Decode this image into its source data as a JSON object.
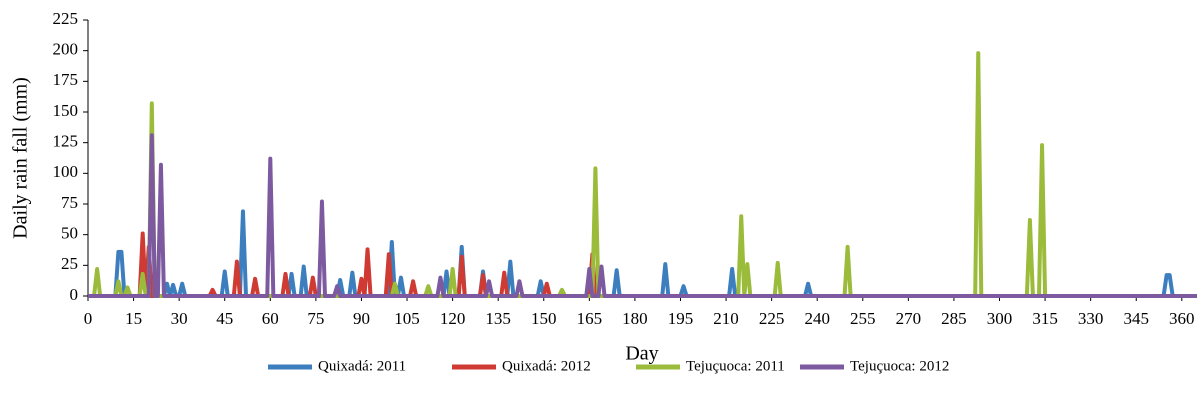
{
  "chart_data": {
    "type": "line",
    "xlabel": "Day",
    "ylabel": "Daily rain fall (mm)",
    "xlim": [
      0,
      365
    ],
    "ylim": [
      0,
      225
    ],
    "xticks": [
      0,
      15,
      30,
      45,
      60,
      75,
      90,
      105,
      120,
      135,
      150,
      165,
      180,
      195,
      210,
      225,
      240,
      255,
      270,
      285,
      300,
      315,
      330,
      345,
      360
    ],
    "yticks": [
      0,
      25,
      50,
      75,
      100,
      125,
      150,
      175,
      200,
      225
    ],
    "legend": "bottom",
    "series": [
      {
        "name": "Quixadá: 2011",
        "color": "#3d7ebf",
        "x": [
          0,
          9,
          10,
          11,
          12,
          25,
          26,
          27,
          28,
          29,
          30,
          31,
          32,
          44,
          45,
          46,
          50,
          51,
          52,
          66,
          67,
          68,
          70,
          71,
          72,
          82,
          83,
          84,
          86,
          87,
          88,
          99,
          100,
          101,
          102,
          103,
          104,
          117,
          118,
          119,
          122,
          123,
          124,
          129,
          130,
          131,
          138,
          139,
          140,
          148,
          149,
          150,
          173,
          174,
          175,
          189,
          190,
          191,
          195,
          196,
          197,
          211,
          212,
          213,
          236,
          237,
          238,
          354,
          355,
          356,
          357,
          365
        ],
        "values": [
          0,
          0,
          36,
          36,
          0,
          0,
          10,
          0,
          9,
          0,
          0,
          10,
          0,
          0,
          20,
          0,
          0,
          69,
          0,
          0,
          18,
          0,
          0,
          24,
          0,
          0,
          13,
          0,
          0,
          19,
          0,
          0,
          44,
          0,
          0,
          15,
          0,
          0,
          20,
          0,
          0,
          40,
          0,
          0,
          20,
          0,
          0,
          28,
          0,
          0,
          12,
          0,
          0,
          21,
          0,
          0,
          26,
          0,
          0,
          8,
          0,
          0,
          22,
          0,
          0,
          10,
          0,
          0,
          17,
          17,
          0,
          0
        ]
      },
      {
        "name": "Quixadá: 2012",
        "color": "#cf3a33",
        "x": [
          0,
          17,
          18,
          19,
          20,
          21,
          40,
          41,
          42,
          48,
          49,
          50,
          54,
          55,
          56,
          64,
          65,
          66,
          73,
          74,
          75,
          89,
          90,
          91,
          92,
          93,
          98,
          99,
          100,
          106,
          107,
          108,
          122,
          123,
          124,
          129,
          130,
          131,
          136,
          137,
          138,
          150,
          151,
          152,
          165,
          166,
          167,
          365
        ],
        "values": [
          0,
          0,
          51,
          0,
          40,
          0,
          0,
          5,
          0,
          0,
          28,
          0,
          0,
          14,
          0,
          0,
          18,
          0,
          0,
          15,
          0,
          0,
          14,
          0,
          38,
          0,
          0,
          34,
          0,
          0,
          12,
          0,
          0,
          32,
          0,
          0,
          17,
          0,
          0,
          19,
          0,
          0,
          10,
          0,
          0,
          34,
          0,
          0
        ]
      },
      {
        "name": "Tejuçuoca: 2011",
        "color": "#9bbb3b",
        "x": [
          0,
          2,
          3,
          4,
          9,
          10,
          11,
          12,
          13,
          14,
          17,
          18,
          19,
          20,
          21,
          22,
          100,
          101,
          102,
          111,
          112,
          113,
          119,
          120,
          121,
          155,
          156,
          157,
          166,
          167,
          168,
          214,
          215,
          216,
          217,
          218,
          226,
          227,
          228,
          249,
          250,
          251,
          292,
          293,
          294,
          309,
          310,
          311,
          313,
          314,
          315,
          365
        ],
        "values": [
          0,
          0,
          22,
          0,
          0,
          12,
          0,
          0,
          7,
          0,
          0,
          18,
          0,
          0,
          157,
          0,
          0,
          10,
          0,
          0,
          8,
          0,
          0,
          22,
          0,
          0,
          5,
          0,
          0,
          104,
          0,
          0,
          65,
          0,
          26,
          0,
          0,
          27,
          0,
          0,
          40,
          0,
          0,
          198,
          0,
          0,
          62,
          0,
          0,
          123,
          0,
          0
        ]
      },
      {
        "name": "Tejuçuoca: 2012",
        "color": "#7d5aa0",
        "x": [
          0,
          20,
          21,
          22,
          23,
          24,
          25,
          59,
          60,
          61,
          76,
          77,
          78,
          81,
          82,
          83,
          115,
          116,
          117,
          131,
          132,
          133,
          141,
          142,
          143,
          164,
          165,
          166,
          168,
          169,
          170,
          365
        ],
        "values": [
          0,
          0,
          131,
          0,
          0,
          107,
          0,
          0,
          112,
          0,
          0,
          77,
          0,
          0,
          8,
          0,
          0,
          15,
          0,
          0,
          12,
          0,
          0,
          12,
          0,
          0,
          22,
          0,
          0,
          24,
          0,
          0
        ]
      }
    ]
  }
}
